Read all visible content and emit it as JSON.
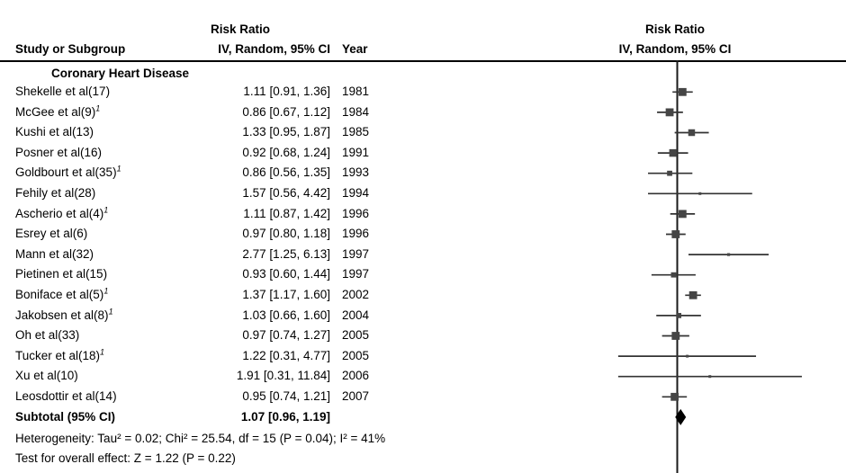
{
  "header": {
    "study_col": "Study or Subgroup",
    "effect_col_line1": "Risk Ratio",
    "effect_col_line2": "IV, Random, 95% CI",
    "year_col": "Year",
    "plot_col_line1": "Risk Ratio",
    "plot_col_line2": "IV, Random, 95% CI"
  },
  "chart_data": {
    "type": "forest",
    "effect_measure": "Risk Ratio",
    "model": "IV, Random, 95% CI",
    "x_scale": "log",
    "null_value": 1,
    "subgroup_label": "Coronary Heart Disease",
    "studies": [
      {
        "name": "Shekelle et al(17)",
        "sup": "",
        "estimate": 1.11,
        "ci_low": 0.91,
        "ci_high": 1.36,
        "label": "1.11 [0.91, 1.36]",
        "year": "1981"
      },
      {
        "name": "McGee et al(9)",
        "sup": "1",
        "estimate": 0.86,
        "ci_low": 0.67,
        "ci_high": 1.12,
        "label": "0.86 [0.67, 1.12]",
        "year": "1984"
      },
      {
        "name": "Kushi et al(13)",
        "sup": "",
        "estimate": 1.33,
        "ci_low": 0.95,
        "ci_high": 1.87,
        "label": "1.33 [0.95, 1.87]",
        "year": "1985"
      },
      {
        "name": "Posner et al(16)",
        "sup": "",
        "estimate": 0.92,
        "ci_low": 0.68,
        "ci_high": 1.24,
        "label": "0.92 [0.68, 1.24]",
        "year": "1991"
      },
      {
        "name": "Goldbourt et al(35)",
        "sup": "1",
        "estimate": 0.86,
        "ci_low": 0.56,
        "ci_high": 1.35,
        "label": "0.86 [0.56, 1.35]",
        "year": "1993"
      },
      {
        "name": "Fehily et al(28)",
        "sup": "",
        "estimate": 1.57,
        "ci_low": 0.56,
        "ci_high": 4.42,
        "label": "1.57 [0.56, 4.42]",
        "year": "1994"
      },
      {
        "name": "Ascherio et al(4)",
        "sup": "1",
        "estimate": 1.11,
        "ci_low": 0.87,
        "ci_high": 1.42,
        "label": "1.11 [0.87, 1.42]",
        "year": "1996"
      },
      {
        "name": "Esrey et al(6)",
        "sup": "",
        "estimate": 0.97,
        "ci_low": 0.8,
        "ci_high": 1.18,
        "label": "0.97 [0.80, 1.18]",
        "year": "1996"
      },
      {
        "name": "Mann et al(32)",
        "sup": "",
        "estimate": 2.77,
        "ci_low": 1.25,
        "ci_high": 6.13,
        "label": "2.77 [1.25, 6.13]",
        "year": "1997"
      },
      {
        "name": "Pietinen et al(15)",
        "sup": "",
        "estimate": 0.93,
        "ci_low": 0.6,
        "ci_high": 1.44,
        "label": "0.93 [0.60, 1.44]",
        "year": "1997"
      },
      {
        "name": "Boniface et al(5)",
        "sup": "1",
        "estimate": 1.37,
        "ci_low": 1.17,
        "ci_high": 1.6,
        "label": "1.37 [1.17, 1.60]",
        "year": "2002"
      },
      {
        "name": "Jakobsen et al(8)",
        "sup": "1",
        "estimate": 1.03,
        "ci_low": 0.66,
        "ci_high": 1.6,
        "label": "1.03 [0.66, 1.60]",
        "year": "2004"
      },
      {
        "name": "Oh et al(33)",
        "sup": "",
        "estimate": 0.97,
        "ci_low": 0.74,
        "ci_high": 1.27,
        "label": "0.97 [0.74, 1.27]",
        "year": "2005"
      },
      {
        "name": "Tucker et al(18)",
        "sup": "1",
        "estimate": 1.22,
        "ci_low": 0.31,
        "ci_high": 4.77,
        "label": "1.22 [0.31, 4.77]",
        "year": "2005"
      },
      {
        "name": "Xu et al(10)",
        "sup": "",
        "estimate": 1.91,
        "ci_low": 0.31,
        "ci_high": 11.84,
        "label": "1.91 [0.31, 11.84]",
        "year": "2006"
      },
      {
        "name": "Leosdottir et al(14)",
        "sup": "",
        "estimate": 0.95,
        "ci_low": 0.74,
        "ci_high": 1.21,
        "label": "0.95 [0.74, 1.21]",
        "year": "2007"
      }
    ],
    "subtotal": {
      "name": "Subtotal (95% CI)",
      "estimate": 1.07,
      "ci_low": 0.96,
      "ci_high": 1.19,
      "label": "1.07 [0.96, 1.19]"
    },
    "heterogeneity": "Heterogeneity: Tau² = 0.02; Chi² = 25.54, df = 15 (P = 0.04); I² = 41%",
    "overall_effect": "Test for overall effect: Z = 1.22 (P = 0.22)"
  },
  "colors": {
    "background": "#ffffff",
    "text": "#000000",
    "header_rule": "#000000",
    "null_line": "#1a1a1a",
    "ci_line": "#333333",
    "marker": "#454545",
    "diamond": "#000000"
  }
}
